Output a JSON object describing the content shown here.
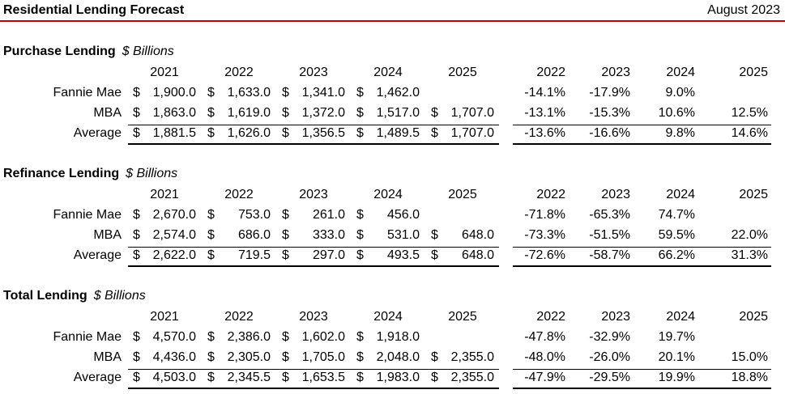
{
  "header": {
    "title": "Residential Lending Forecast",
    "date": "August 2023"
  },
  "sections": [
    {
      "title": "Purchase Lending",
      "units": "$ Billions",
      "years": [
        "2021",
        "2022",
        "2023",
        "2024",
        "2025"
      ],
      "pct_years": [
        "2022",
        "2023",
        "2024",
        "2025"
      ],
      "rows": [
        {
          "label": "Fannie Mae",
          "values": [
            "1,900.0",
            "1,633.0",
            "1,341.0",
            "1,462.0",
            ""
          ],
          "pcts": [
            "-14.1%",
            "-17.9%",
            "9.0%",
            ""
          ]
        },
        {
          "label": "MBA",
          "values": [
            "1,863.0",
            "1,619.0",
            "1,372.0",
            "1,517.0",
            "1,707.0"
          ],
          "pcts": [
            "-13.1%",
            "-15.3%",
            "10.6%",
            "12.5%"
          ]
        },
        {
          "label": "Average",
          "values": [
            "1,881.5",
            "1,626.0",
            "1,356.5",
            "1,489.5",
            "1,707.0"
          ],
          "pcts": [
            "-13.6%",
            "-16.6%",
            "9.8%",
            "14.6%"
          ]
        }
      ]
    },
    {
      "title": "Refinance Lending",
      "units": "$ Billions",
      "years": [
        "2021",
        "2022",
        "2023",
        "2024",
        "2025"
      ],
      "pct_years": [
        "2022",
        "2023",
        "2024",
        "2025"
      ],
      "rows": [
        {
          "label": "Fannie Mae",
          "values": [
            "2,670.0",
            "753.0",
            "261.0",
            "456.0",
            ""
          ],
          "pcts": [
            "-71.8%",
            "-65.3%",
            "74.7%",
            ""
          ]
        },
        {
          "label": "MBA",
          "values": [
            "2,574.0",
            "686.0",
            "333.0",
            "531.0",
            "648.0"
          ],
          "pcts": [
            "-73.3%",
            "-51.5%",
            "59.5%",
            "22.0%"
          ]
        },
        {
          "label": "Average",
          "values": [
            "2,622.0",
            "719.5",
            "297.0",
            "493.5",
            "648.0"
          ],
          "pcts": [
            "-72.6%",
            "-58.7%",
            "66.2%",
            "31.3%"
          ]
        }
      ]
    },
    {
      "title": "Total Lending",
      "units": "$ Billions",
      "years": [
        "2021",
        "2022",
        "2023",
        "2024",
        "2025"
      ],
      "pct_years": [
        "2022",
        "2023",
        "2024",
        "2025"
      ],
      "rows": [
        {
          "label": "Fannie Mae",
          "values": [
            "4,570.0",
            "2,386.0",
            "1,602.0",
            "1,918.0",
            ""
          ],
          "pcts": [
            "-47.8%",
            "-32.9%",
            "19.7%",
            ""
          ]
        },
        {
          "label": "MBA",
          "values": [
            "4,436.0",
            "2,305.0",
            "1,705.0",
            "2,048.0",
            "2,355.0"
          ],
          "pcts": [
            "-48.0%",
            "-26.0%",
            "20.1%",
            "15.0%"
          ]
        },
        {
          "label": "Average",
          "values": [
            "4,503.0",
            "2,345.5",
            "1,653.5",
            "1,983.0",
            "2,355.0"
          ],
          "pcts": [
            "-47.9%",
            "-29.5%",
            "19.9%",
            "18.8%"
          ]
        }
      ]
    }
  ],
  "currency_symbol": "$",
  "colors": {
    "header_rule": "#c00000",
    "text": "#000000"
  }
}
